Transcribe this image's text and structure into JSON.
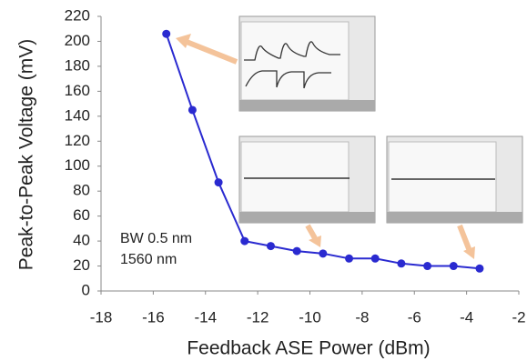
{
  "chart_data": {
    "type": "line",
    "x_label": "Feedback ASE Power (dBm)",
    "y_label": "Peak-to-Peak Voltage (mV)",
    "annotations": [
      "BW 0.5 nm",
      "1560 nm"
    ],
    "x": [
      -15.5,
      -14.5,
      -13.5,
      -12.5,
      -11.5,
      -10.5,
      -9.5,
      -8.5,
      -7.5,
      -6.5,
      -5.5,
      -4.5,
      -3.5
    ],
    "values": [
      206,
      145,
      87,
      40,
      36,
      32,
      30,
      26,
      26,
      22,
      20,
      20,
      18
    ],
    "color": "#2a2ad0",
    "xlim": [
      -18,
      -2
    ],
    "xticks": [
      -18,
      -16,
      -14,
      -12,
      -10,
      -8,
      -6,
      -4,
      -2
    ],
    "ylim": [
      0,
      220
    ],
    "yticks": [
      0,
      20,
      40,
      60,
      80,
      100,
      120,
      140,
      160,
      180,
      200,
      220
    ],
    "grid": false
  }
}
